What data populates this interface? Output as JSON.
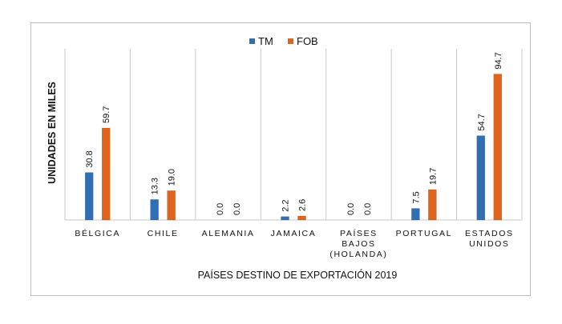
{
  "chart_data": {
    "type": "bar",
    "xlabel": "PAÍSES DESTINO DE EXPORTACIÓN 2019",
    "ylabel": "UNIDADES EN MILES",
    "categories": [
      [
        "BÉLGICA"
      ],
      [
        "CHILE"
      ],
      [
        "ALEMANIA"
      ],
      [
        "JAMAICA"
      ],
      [
        "PAÍSES",
        "BAJOS",
        "(HOLANDA)"
      ],
      [
        "PORTUGAL"
      ],
      [
        "ESTADOS",
        "UNIDOS"
      ]
    ],
    "series": [
      {
        "name": "TM",
        "color": "#2e6fb5",
        "values": [
          30.8,
          13.3,
          0.0,
          2.2,
          0.0,
          7.5,
          54.7
        ],
        "labels": [
          "30.8",
          "13.3",
          "0.0",
          "2.2",
          "0.0",
          "7.5",
          "54.7"
        ]
      },
      {
        "name": "FOB",
        "color": "#e0641c",
        "values": [
          59.7,
          19.0,
          0.0,
          2.6,
          0.0,
          19.7,
          94.7
        ],
        "labels": [
          "59.7",
          "19.0",
          "0.0",
          "2.6",
          "0.0",
          "19.7",
          "94.7"
        ]
      }
    ],
    "ylim": [
      0,
      100
    ],
    "legend": "top-center",
    "grid": "vertical category separators"
  }
}
